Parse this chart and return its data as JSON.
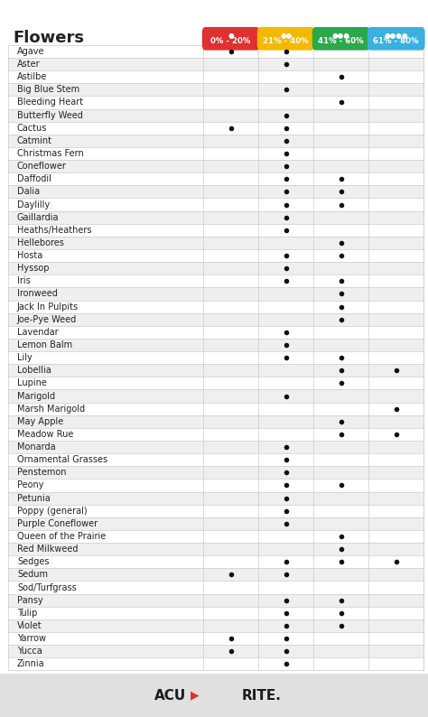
{
  "title": "Flowers",
  "columns": [
    "0% - 20%",
    "21% - 40%",
    "41% - 60%",
    "61% - 80%"
  ],
  "col_colors": [
    "#e03030",
    "#f5b800",
    "#2aa84a",
    "#3ab0e0"
  ],
  "plants": [
    "Agave",
    "Aster",
    "Astilbe",
    "Big Blue Stem",
    "Bleeding Heart",
    "Butterfly Weed",
    "Cactus",
    "Catmint",
    "Christmas Fern",
    "Coneflower",
    "Daffodil",
    "Dalia",
    "Daylilly",
    "Gaillardia",
    "Heaths/Heathers",
    "Hellebores",
    "Hosta",
    "Hyssop",
    "Iris",
    "Ironweed",
    "Jack In Pulpits",
    "Joe-Pye Weed",
    "Lavendar",
    "Lemon Balm",
    "Lily",
    "Lobellia",
    "Lupine",
    "Marigold",
    "Marsh Marigold",
    "May Apple",
    "Meadow Rue",
    "Monarda",
    "Ornamental Grasses",
    "Penstemon",
    "Peony",
    "Petunia",
    "Poppy (general)",
    "Purple Coneflower",
    "Queen of the Prairie",
    "Red Milkweed",
    "Sedges",
    "Sedum",
    "Sod/Turfgrass",
    "Pansy",
    "Tulip",
    "Violet",
    "Yarrow",
    "Yucca",
    "Zinnia"
  ],
  "dots": {
    "Agave": [
      1,
      1,
      0,
      0
    ],
    "Aster": [
      0,
      1,
      0,
      0
    ],
    "Astilbe": [
      0,
      0,
      1,
      0
    ],
    "Big Blue Stem": [
      0,
      1,
      0,
      0
    ],
    "Bleeding Heart": [
      0,
      0,
      1,
      0
    ],
    "Butterfly Weed": [
      0,
      1,
      0,
      0
    ],
    "Cactus": [
      1,
      1,
      0,
      0
    ],
    "Catmint": [
      0,
      1,
      0,
      0
    ],
    "Christmas Fern": [
      0,
      1,
      0,
      0
    ],
    "Coneflower": [
      0,
      1,
      0,
      0
    ],
    "Daffodil": [
      0,
      1,
      1,
      0
    ],
    "Dalia": [
      0,
      1,
      1,
      0
    ],
    "Daylilly": [
      0,
      1,
      1,
      0
    ],
    "Gaillardia": [
      0,
      1,
      0,
      0
    ],
    "Heaths/Heathers": [
      0,
      1,
      0,
      0
    ],
    "Hellebores": [
      0,
      0,
      1,
      0
    ],
    "Hosta": [
      0,
      1,
      1,
      0
    ],
    "Hyssop": [
      0,
      1,
      0,
      0
    ],
    "Iris": [
      0,
      1,
      1,
      0
    ],
    "Ironweed": [
      0,
      0,
      1,
      0
    ],
    "Jack In Pulpits": [
      0,
      0,
      1,
      0
    ],
    "Joe-Pye Weed": [
      0,
      0,
      1,
      0
    ],
    "Lavendar": [
      0,
      1,
      0,
      0
    ],
    "Lemon Balm": [
      0,
      1,
      0,
      0
    ],
    "Lily": [
      0,
      1,
      1,
      0
    ],
    "Lobellia": [
      0,
      0,
      1,
      1
    ],
    "Lupine": [
      0,
      0,
      1,
      0
    ],
    "Marigold": [
      0,
      1,
      0,
      0
    ],
    "Marsh Marigold": [
      0,
      0,
      0,
      1
    ],
    "May Apple": [
      0,
      0,
      1,
      0
    ],
    "Meadow Rue": [
      0,
      0,
      1,
      1
    ],
    "Monarda": [
      0,
      1,
      0,
      0
    ],
    "Ornamental Grasses": [
      0,
      1,
      0,
      0
    ],
    "Penstemon": [
      0,
      1,
      0,
      0
    ],
    "Peony": [
      0,
      1,
      1,
      0
    ],
    "Petunia": [
      0,
      1,
      0,
      0
    ],
    "Poppy (general)": [
      0,
      1,
      0,
      0
    ],
    "Purple Coneflower": [
      0,
      1,
      0,
      0
    ],
    "Queen of the Prairie": [
      0,
      0,
      1,
      0
    ],
    "Red Milkweed": [
      0,
      0,
      1,
      0
    ],
    "Sedges": [
      0,
      1,
      1,
      1
    ],
    "Sedum": [
      1,
      1,
      0,
      0
    ],
    "Sod/Turfgrass": [
      0,
      0,
      0,
      0
    ],
    "Pansy": [
      0,
      1,
      1,
      0
    ],
    "Tulip": [
      0,
      1,
      1,
      0
    ],
    "Violet": [
      0,
      1,
      1,
      0
    ],
    "Yarrow": [
      1,
      1,
      0,
      0
    ],
    "Yucca": [
      1,
      1,
      0,
      0
    ],
    "Zinnia": [
      0,
      1,
      0,
      0
    ]
  },
  "bg_color": "#ffffff",
  "row_alt_color": "#efefef",
  "dot_color": "#111111",
  "footer_bg": "#e0e0e0",
  "header_bg": "#ffffff",
  "footer_arrow_color": "#e03030"
}
